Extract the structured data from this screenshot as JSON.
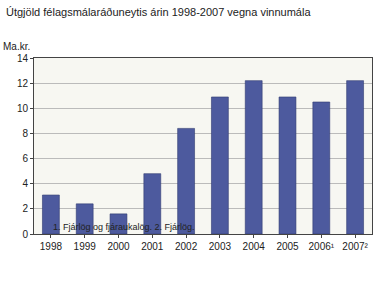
{
  "chart_data": {
    "type": "bar",
    "title": "Útgjöld félagsmálaráðuneytis árin 1998-2007 vegna vinnumála",
    "ylabel": "Ma.kr.",
    "footnote": "1. Fjárlög og fjáraukalög. 2. Fjárlög.",
    "categories": [
      "1998",
      "1999",
      "2000",
      "2001",
      "2002",
      "2003",
      "2004",
      "2005",
      "2006¹",
      "2007²"
    ],
    "values": [
      3.1,
      2.4,
      1.6,
      4.8,
      8.4,
      10.9,
      12.2,
      10.9,
      10.5,
      12.2
    ],
    "color": "#4d5a9e",
    "ylim": [
      0,
      14
    ],
    "yticks": [
      0,
      2,
      4,
      6,
      8,
      10,
      12,
      14
    ],
    "grid": true
  }
}
